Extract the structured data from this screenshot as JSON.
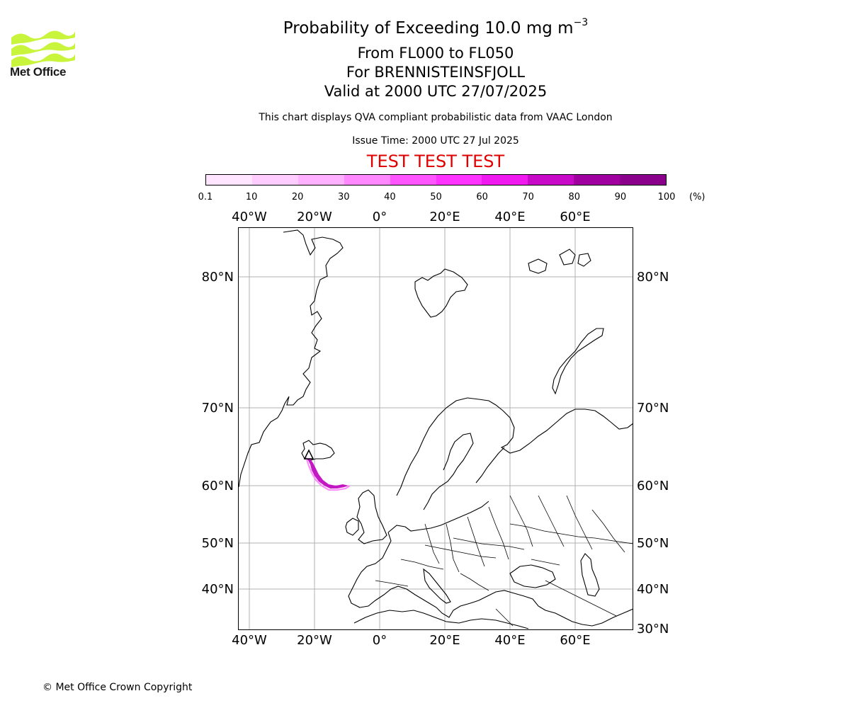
{
  "header": {
    "title": "Probability of Exceeding 10.0 mg m",
    "title_superscript": "−3",
    "flight_levels": "From FL000 to FL050",
    "volcano": "For BRENNISTEINSFJOLL",
    "valid_time": "Valid at 2000 UTC 27/07/2025",
    "disclaimer": "This chart displays QVA compliant probabilistic data from VAAC London",
    "issue_time": "Issue Time: 2000 UTC 27 Jul 2025",
    "test_banner": "TEST TEST TEST"
  },
  "logo": {
    "text": "Met Office",
    "color": "#c5f542"
  },
  "colorbar": {
    "ticks": [
      "0.1",
      "10",
      "20",
      "30",
      "40",
      "50",
      "60",
      "70",
      "80",
      "90",
      "100"
    ],
    "unit": "(%)",
    "colors": [
      "#ffe5ff",
      "#ffccff",
      "#ffb0ff",
      "#ff88ff",
      "#ff55ff",
      "#ff33ff",
      "#f01af0",
      "#c80ac8",
      "#a000a0",
      "#8a008a",
      "#660066"
    ]
  },
  "map": {
    "lon_labels": [
      "40°W",
      "20°W",
      "0°",
      "20°E",
      "40°E",
      "60°E"
    ],
    "lat_labels_left": [
      "80°N",
      "70°N",
      "60°N",
      "50°N",
      "40°N"
    ],
    "lat_labels_right": [
      "80°N",
      "70°N",
      "60°N",
      "50°N",
      "40°N",
      "30°N"
    ],
    "plume_color": "#c000c0"
  },
  "footer": {
    "copyright": "© Met Office Crown Copyright"
  }
}
